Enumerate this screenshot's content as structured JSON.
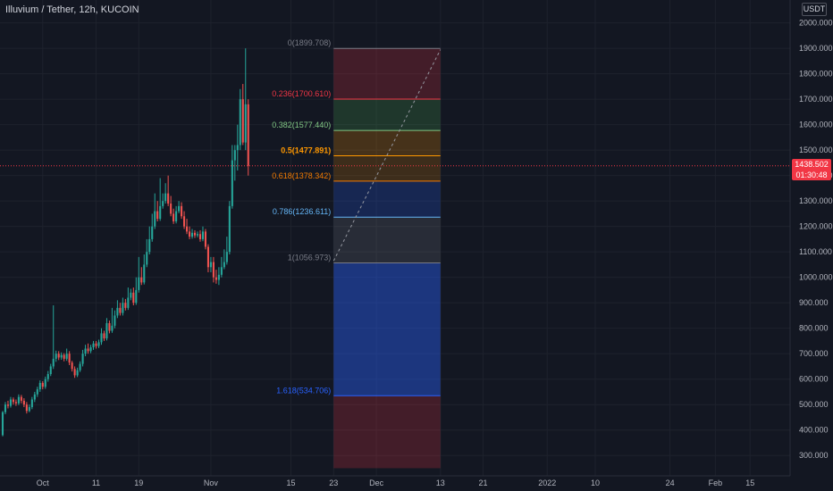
{
  "header": {
    "title": "Illuvium / Tether, 12h, KUCOIN",
    "currency_badge": "USDT"
  },
  "last_price": {
    "price": "1438.502",
    "countdown": "01:30:48",
    "value": 1438.502,
    "color": "#f23645"
  },
  "colors": {
    "background": "#131722",
    "up": "#26a69a",
    "down": "#ef5350",
    "grid": "#1e222d",
    "axis_text": "#b2b5be"
  },
  "chart_data": {
    "type": "candlestick",
    "symbol": "Illuvium / Tether",
    "interval": "12h",
    "exchange": "KUCOIN",
    "y_axis": {
      "ticks": [
        "2000.000",
        "1900.000",
        "1800.000",
        "1700.000",
        "1600.000",
        "1500.000",
        "1400.000",
        "1300.000",
        "1200.000",
        "1100.000",
        "1000.000",
        "900.000",
        "800.000",
        "700.000",
        "600.000",
        "500.000",
        "400.000",
        "300.000"
      ],
      "tick_values": [
        2000,
        1900,
        1800,
        1700,
        1600,
        1500,
        1400,
        1300,
        1200,
        1100,
        1000,
        900,
        800,
        700,
        600,
        500,
        400,
        300
      ],
      "range": [
        220,
        2090
      ]
    },
    "x_axis": {
      "ticks": [
        {
          "label": "Oct",
          "bar": 15
        },
        {
          "label": "11",
          "bar": 35
        },
        {
          "label": "19",
          "bar": 51
        },
        {
          "label": "Nov",
          "bar": 78
        },
        {
          "label": "15",
          "bar": 108
        },
        {
          "label": "23",
          "bar": 124
        },
        {
          "label": "Dec",
          "bar": 140
        },
        {
          "label": "13",
          "bar": 164
        },
        {
          "label": "21",
          "bar": 180
        },
        {
          "label": "2022",
          "bar": 204
        },
        {
          "label": "10",
          "bar": 222
        },
        {
          "label": "24",
          "bar": 250
        },
        {
          "label": "Feb",
          "bar": 267
        },
        {
          "label": "15",
          "bar": 280
        }
      ],
      "range": [
        -1,
        295
      ]
    },
    "candles": [
      [
        380,
        470,
        375,
        475
      ],
      [
        470,
        500,
        462,
        510
      ],
      [
        500,
        495,
        485,
        515
      ],
      [
        495,
        520,
        488,
        530
      ],
      [
        520,
        510,
        500,
        528
      ],
      [
        510,
        505,
        495,
        520
      ],
      [
        505,
        530,
        498,
        540
      ],
      [
        530,
        515,
        505,
        538
      ],
      [
        515,
        500,
        490,
        525
      ],
      [
        500,
        475,
        465,
        510
      ],
      [
        475,
        490,
        470,
        500
      ],
      [
        490,
        520,
        482,
        530
      ],
      [
        520,
        540,
        510,
        550
      ],
      [
        540,
        560,
        530,
        570
      ],
      [
        560,
        585,
        550,
        595
      ],
      [
        585,
        570,
        560,
        592
      ],
      [
        570,
        600,
        562,
        610
      ],
      [
        600,
        620,
        590,
        632
      ],
      [
        620,
        650,
        612,
        660
      ],
      [
        650,
        680,
        640,
        890
      ],
      [
        680,
        700,
        668,
        712
      ],
      [
        700,
        685,
        675,
        710
      ],
      [
        685,
        695,
        676,
        705
      ],
      [
        695,
        680,
        670,
        702
      ],
      [
        680,
        700,
        672,
        720
      ],
      [
        700,
        665,
        655,
        710
      ],
      [
        665,
        640,
        630,
        672
      ],
      [
        640,
        615,
        605,
        650
      ],
      [
        615,
        635,
        608,
        645
      ],
      [
        635,
        660,
        628,
        670
      ],
      [
        660,
        700,
        650,
        715
      ],
      [
        700,
        720,
        690,
        735
      ],
      [
        720,
        710,
        700,
        740
      ],
      [
        710,
        725,
        702,
        735
      ],
      [
        725,
        740,
        715,
        750
      ],
      [
        740,
        730,
        720,
        750
      ],
      [
        730,
        745,
        722,
        755
      ],
      [
        745,
        780,
        735,
        800
      ],
      [
        780,
        760,
        750,
        790
      ],
      [
        760,
        820,
        752,
        840
      ],
      [
        820,
        790,
        780,
        830
      ],
      [
        790,
        810,
        782,
        880
      ],
      [
        810,
        850,
        800,
        870
      ],
      [
        850,
        880,
        840,
        910
      ],
      [
        880,
        860,
        850,
        900
      ],
      [
        860,
        900,
        850,
        920
      ],
      [
        900,
        880,
        870,
        915
      ],
      [
        880,
        920,
        872,
        960
      ],
      [
        920,
        940,
        910,
        955
      ],
      [
        940,
        900,
        890,
        960
      ],
      [
        900,
        950,
        892,
        1000
      ],
      [
        950,
        1000,
        940,
        1080
      ],
      [
        1000,
        980,
        970,
        1040
      ],
      [
        980,
        1050,
        972,
        1090
      ],
      [
        1050,
        1100,
        1040,
        1150
      ],
      [
        1100,
        1150,
        1090,
        1200
      ],
      [
        1150,
        1200,
        1140,
        1250
      ],
      [
        1200,
        1260,
        1190,
        1330
      ],
      [
        1260,
        1230,
        1220,
        1300
      ],
      [
        1230,
        1280,
        1222,
        1390
      ],
      [
        1280,
        1300,
        1270,
        1330
      ],
      [
        1300,
        1330,
        1290,
        1370
      ],
      [
        1330,
        1290,
        1280,
        1400
      ],
      [
        1290,
        1250,
        1240,
        1320
      ],
      [
        1250,
        1220,
        1210,
        1270
      ],
      [
        1220,
        1260,
        1212,
        1280
      ],
      [
        1260,
        1280,
        1252,
        1300
      ],
      [
        1280,
        1240,
        1230,
        1295
      ],
      [
        1240,
        1200,
        1190,
        1260
      ],
      [
        1200,
        1180,
        1170,
        1230
      ],
      [
        1180,
        1160,
        1150,
        1200
      ],
      [
        1160,
        1175,
        1152,
        1190
      ],
      [
        1175,
        1165,
        1155,
        1185
      ],
      [
        1165,
        1170,
        1157,
        1180
      ],
      [
        1170,
        1150,
        1140,
        1185
      ],
      [
        1150,
        1180,
        1142,
        1200
      ],
      [
        1180,
        1120,
        1110,
        1190
      ],
      [
        1120,
        1040,
        1020,
        1130
      ],
      [
        1040,
        1060,
        1020,
        1080
      ],
      [
        1060,
        1000,
        980,
        1080
      ],
      [
        1000,
        990,
        975,
        1030
      ],
      [
        990,
        1010,
        970,
        1040
      ],
      [
        1010,
        1040,
        1000,
        1080
      ],
      [
        1040,
        1060,
        1032,
        1110
      ],
      [
        1060,
        1100,
        1050,
        1160
      ],
      [
        1100,
        1280,
        1090,
        1300
      ],
      [
        1280,
        1460,
        1270,
        1520
      ],
      [
        1460,
        1500,
        1380,
        1520
      ],
      [
        1500,
        1520,
        1420,
        1600
      ],
      [
        1520,
        1700,
        1500,
        1740
      ],
      [
        1700,
        1530,
        1520,
        1760
      ],
      [
        1530,
        1680,
        1500,
        1900
      ],
      [
        1680,
        1438.502,
        1400,
        1700
      ]
    ],
    "fibonacci": {
      "start_bar": 124,
      "end_bar": 164,
      "levels": [
        {
          "ratio": "0",
          "label": "0(1899.708)",
          "value": 1899.708,
          "line": "#787b86",
          "fill": "rgba(242,54,69,0.22)"
        },
        {
          "ratio": "0.236",
          "label": "0.236(1700.610)",
          "value": 1700.61,
          "line": "#f23645",
          "fill": "rgba(76,175,80,0.22)"
        },
        {
          "ratio": "0.382",
          "label": "0.382(1577.440)",
          "value": 1577.44,
          "line": "#81c784",
          "fill": "rgba(255,152,0,0.22)"
        },
        {
          "ratio": "0.5",
          "label": "0.5(1477.891)",
          "value": 1477.891,
          "line": "#ff9800",
          "fill": "rgba(255,152,0,0.18)"
        },
        {
          "ratio": "0.618",
          "label": "0.618(1378.342)",
          "value": 1378.342,
          "line": "#f57c00",
          "fill": "rgba(41,98,255,0.22)"
        },
        {
          "ratio": "0.786",
          "label": "0.786(1236.611)",
          "value": 1236.611,
          "line": "#64b5f6",
          "fill": "rgba(120,123,134,0.22)"
        },
        {
          "ratio": "1",
          "label": "1(1056.973)",
          "value": 1056.973,
          "line": "#787b86",
          "fill": "rgba(41,98,255,0.42)"
        },
        {
          "ratio": "1.618",
          "label": "1.618(534.706)",
          "value": 534.706,
          "line": "#2962ff",
          "fill": "rgba(242,54,69,0.22)"
        }
      ],
      "bottom_value": 250,
      "trend_line": {
        "from_bar": 124,
        "from_value": 1065,
        "to_bar": 164,
        "to_value": 1895
      }
    },
    "grid": true
  }
}
